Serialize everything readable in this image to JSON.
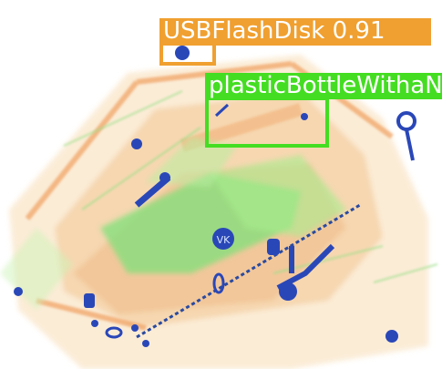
{
  "image": {
    "description_kind": "x-ray baggage scan with object detection overlays"
  },
  "detections": [
    {
      "label": "USBFlashDisk",
      "score": "0.91",
      "color": "#f0a030"
    },
    {
      "label": "plasticBottleWithaNozzle",
      "color": "#44dd22"
    }
  ]
}
